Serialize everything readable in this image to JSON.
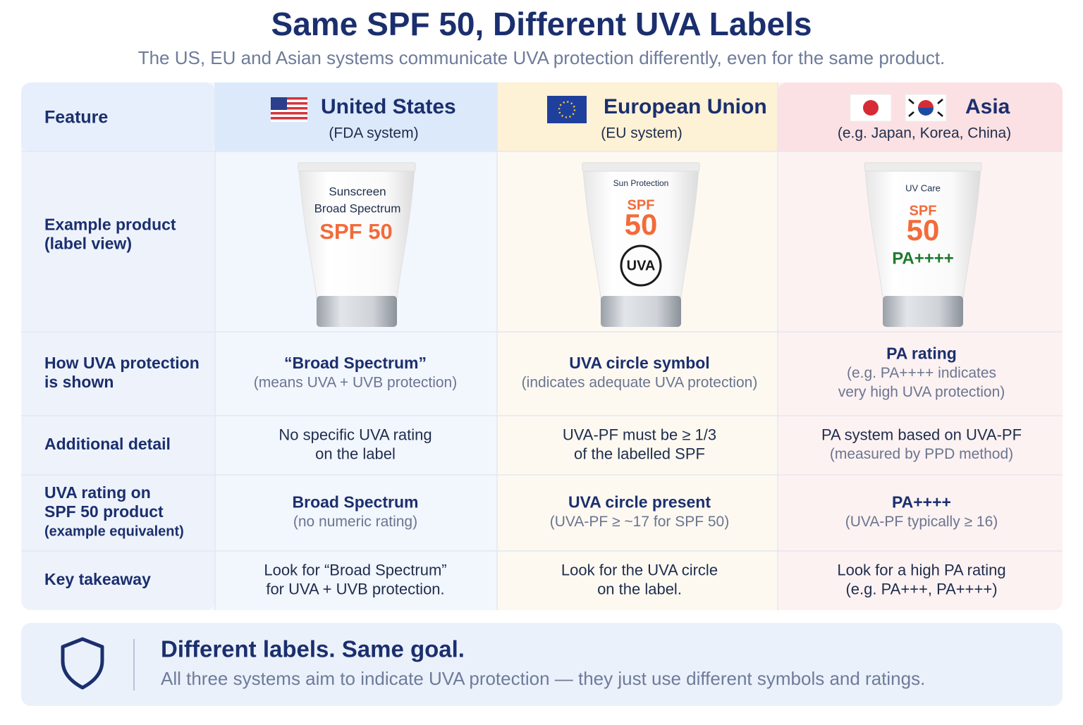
{
  "title": "Same SPF 50, Different UVA Labels",
  "subtitle": "The US, EU and Asian systems communicate UVA protection differently, even for the same product.",
  "table": {
    "header": {
      "feature": "Feature",
      "columns": [
        {
          "name": "United States",
          "system": "(FDA system)"
        },
        {
          "name": "European Union",
          "system": "(EU system)"
        },
        {
          "name": "Asia",
          "system": "(e.g. Japan, Korea, China)"
        }
      ]
    },
    "product_row": {
      "feature": [
        "Example product",
        "(label view)"
      ],
      "tubes": [
        {
          "lines": [
            "Sunscreen",
            "Broad Spectrum"
          ],
          "spf": "SPF 50"
        },
        {
          "lines": [
            "Sun Protection"
          ],
          "spf": "SPF",
          "number": "50",
          "badge": "UVA"
        },
        {
          "lines": [
            "UV Care"
          ],
          "spf": "SPF",
          "number": "50",
          "rating": "PA++++"
        }
      ]
    },
    "rows": [
      {
        "feature": [
          "How UVA protection",
          "is shown"
        ],
        "cells": [
          {
            "heading": [
              "“Broad Spectrum”"
            ],
            "note": [
              "(means UVA + UVB protection)"
            ]
          },
          {
            "heading": [
              "UVA circle symbol"
            ],
            "note": [
              "(indicates adequate UVA protection)"
            ]
          },
          {
            "heading": [
              "PA rating"
            ],
            "note": [
              "(e.g. PA++++ indicates",
              "very high UVA protection)"
            ]
          }
        ]
      },
      {
        "feature": [
          "Additional detail"
        ],
        "cells": [
          {
            "text": [
              "No specific UVA rating",
              "on the label"
            ]
          },
          {
            "text": [
              "UVA-PF must be ≥ 1/3",
              "of the labelled SPF"
            ]
          },
          {
            "text": [
              "PA system based on UVA-PF"
            ],
            "note": [
              "(measured by PPD method)"
            ]
          }
        ]
      },
      {
        "feature": [
          "UVA rating on",
          "SPF 50 product"
        ],
        "feature_note": [
          "(example equivalent)"
        ],
        "cells": [
          {
            "heading": [
              "Broad Spectrum"
            ],
            "note": [
              "(no numeric rating)"
            ]
          },
          {
            "heading": [
              "UVA circle present"
            ],
            "note": [
              "(UVA-PF ≥ ~17 for SPF 50)"
            ]
          },
          {
            "heading": [
              "PA++++"
            ],
            "note": [
              "(UVA-PF typically ≥ 16)"
            ]
          }
        ]
      },
      {
        "feature": [
          "Key takeaway"
        ],
        "cells": [
          {
            "text": [
              "Look for “Broad Spectrum”",
              "for UVA + UVB protection."
            ]
          },
          {
            "text": [
              "Look for the UVA circle",
              "on the label."
            ]
          },
          {
            "text": [
              "Look for a high PA rating",
              "(e.g. PA+++, PA++++)"
            ]
          }
        ]
      }
    ]
  },
  "footer": {
    "heading": "Different labels. Same goal.",
    "text": "All three systems aim to indicate UVA protection — they just use different symbols and ratings."
  }
}
